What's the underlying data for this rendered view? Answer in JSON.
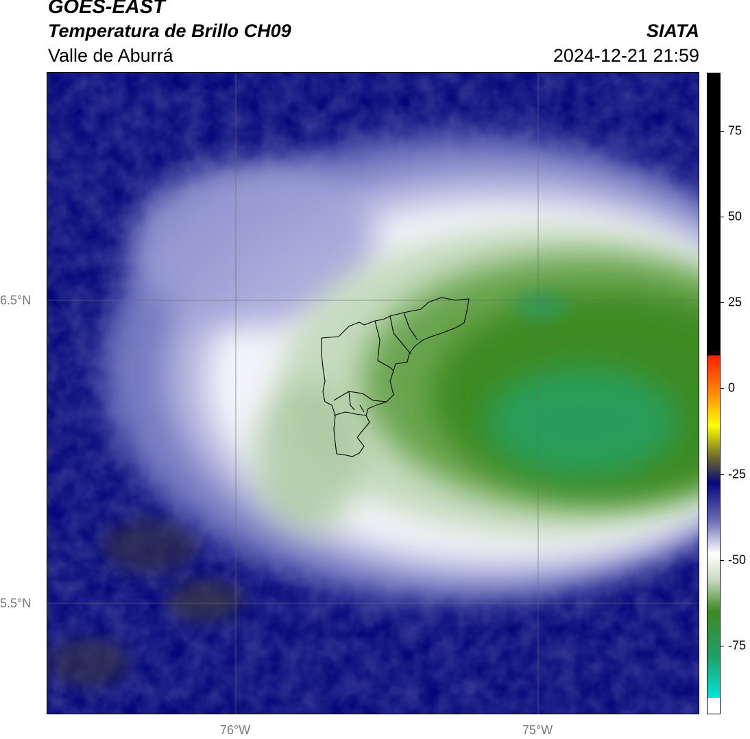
{
  "header": {
    "satellite": "GOES-EAST",
    "product": "Temperatura de Brillo CH09",
    "region": "Valle de Aburrá",
    "agency": "SIATA",
    "timestamp": "2024-12-21 21:59"
  },
  "map": {
    "lat_labels": [
      "6.5°N",
      "5.5°N"
    ],
    "lon_labels": [
      "76°W",
      "75°W"
    ],
    "overlay": "Valle de Aburrá municipal boundaries",
    "gridlines": true
  },
  "colorbar": {
    "tick_labels": [
      "75",
      "50",
      "25",
      "0",
      "-25",
      "-50",
      "-75"
    ],
    "tick_values": [
      75,
      50,
      25,
      0,
      -25,
      -50,
      -75
    ],
    "range": [
      -95,
      92
    ],
    "colors": {
      "black": "#000000",
      "red": "#ff1f00",
      "orange": "#ff8c00",
      "yellow": "#ffff00",
      "olive": "#6b6b2a",
      "navy": "#05087a",
      "lavender": "#b4b6dc",
      "white": "#ffffff",
      "pale_green": "#c9dcc2",
      "green": "#3d8a22",
      "teal": "#1fa066",
      "cyan": "#00e5d8"
    }
  }
}
